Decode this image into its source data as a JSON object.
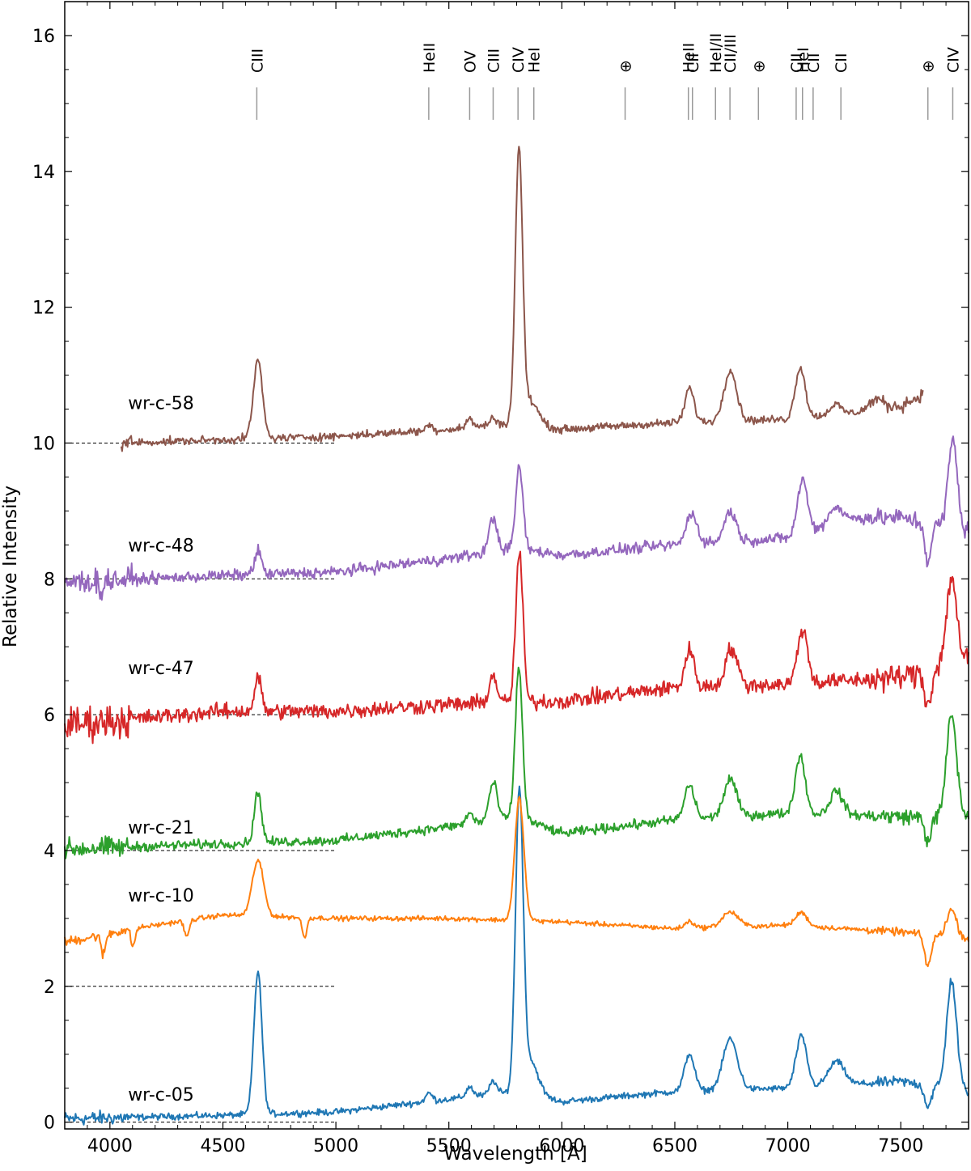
{
  "chart_data": {
    "type": "line",
    "xlabel": "Wavelength [Å]",
    "ylabel": "Relative Intensity",
    "xlim": [
      3800,
      7800
    ],
    "ylim": [
      -0.1,
      16.5
    ],
    "xticks": [
      4000,
      4500,
      5000,
      5500,
      6000,
      6500,
      7000,
      7500
    ],
    "yticks": [
      0,
      2,
      4,
      6,
      8,
      10,
      12,
      14,
      16
    ],
    "grid": false,
    "legend": "none (series labels drawn at left of each spectrum)",
    "line_ids": [
      {
        "label": "CIII",
        "x": 4650
      },
      {
        "label": "HeII",
        "x": 5411
      },
      {
        "label": "OV",
        "x": 5592
      },
      {
        "label": "CIII",
        "x": 5696
      },
      {
        "label": "CIV",
        "x": 5806
      },
      {
        "label": "HeI",
        "x": 5876
      },
      {
        "label": "⊕",
        "x": 6280
      },
      {
        "label": "HeII",
        "x": 6560
      },
      {
        "label": "CII",
        "x": 6578
      },
      {
        "label": "HeI/II",
        "x": 6680
      },
      {
        "label": "CII/III",
        "x": 6744
      },
      {
        "label": "⊕",
        "x": 6870
      },
      {
        "label": "CII",
        "x": 7037
      },
      {
        "label": "HeI",
        "x": 7065
      },
      {
        "label": "CII",
        "x": 7112
      },
      {
        "label": "CII",
        "x": 7235
      },
      {
        "label": "⊕",
        "x": 7620
      },
      {
        "label": "CIV",
        "x": 7730
      }
    ],
    "series": [
      {
        "name": "wr-c-05",
        "color": "#1f77b4",
        "offset": 0,
        "x_range": [
          3800,
          7800
        ],
        "continuum": [
          [
            3800,
            0.05
          ],
          [
            4500,
            0.1
          ],
          [
            5000,
            0.15
          ],
          [
            5400,
            0.3
          ],
          [
            5800,
            0.45
          ],
          [
            6000,
            0.3
          ],
          [
            6500,
            0.45
          ],
          [
            7000,
            0.5
          ],
          [
            7500,
            0.6
          ],
          [
            7800,
            0.45
          ]
        ],
        "emission": [
          {
            "center": 4655,
            "height": 2.1,
            "width": 18
          },
          {
            "center": 5412,
            "height": 0.12,
            "width": 15
          },
          {
            "center": 5592,
            "height": 0.15,
            "width": 15
          },
          {
            "center": 5696,
            "height": 0.2,
            "width": 15
          },
          {
            "center": 5812,
            "height": 4.3,
            "width": 17
          },
          {
            "center": 5860,
            "height": 0.5,
            "width": 35
          },
          {
            "center": 6565,
            "height": 0.55,
            "width": 22
          },
          {
            "center": 6745,
            "height": 0.75,
            "width": 32
          },
          {
            "center": 7060,
            "height": 0.75,
            "width": 24
          },
          {
            "center": 7215,
            "height": 0.35,
            "width": 35
          },
          {
            "center": 7725,
            "height": 1.6,
            "width": 22
          }
        ],
        "absorption": [
          {
            "center": 7620,
            "depth": 0.3,
            "width": 15
          }
        ],
        "noise": 0.04
      },
      {
        "name": "wr-c-10",
        "color": "#ff7f0e",
        "offset": 0,
        "x_range": [
          3800,
          7800
        ],
        "continuum": [
          [
            3800,
            2.65
          ],
          [
            4100,
            2.85
          ],
          [
            4500,
            3.05
          ],
          [
            5000,
            3.0
          ],
          [
            5500,
            3.0
          ],
          [
            6000,
            2.95
          ],
          [
            6500,
            2.85
          ],
          [
            7000,
            2.9
          ],
          [
            7500,
            2.8
          ],
          [
            7800,
            2.7
          ]
        ],
        "emission": [
          {
            "center": 4655,
            "height": 0.82,
            "width": 25
          },
          {
            "center": 5812,
            "height": 1.8,
            "width": 20
          },
          {
            "center": 6565,
            "height": 0.1,
            "width": 20
          },
          {
            "center": 6745,
            "height": 0.22,
            "width": 35
          },
          {
            "center": 7060,
            "height": 0.2,
            "width": 25
          },
          {
            "center": 7725,
            "height": 0.4,
            "width": 22
          }
        ],
        "absorption": [
          {
            "center": 3970,
            "depth": 0.3,
            "width": 10
          },
          {
            "center": 4102,
            "depth": 0.25,
            "width": 10
          },
          {
            "center": 4340,
            "depth": 0.25,
            "width": 10
          },
          {
            "center": 4861,
            "depth": 0.3,
            "width": 10
          },
          {
            "center": 7620,
            "depth": 0.45,
            "width": 15
          }
        ],
        "noise": 0.03
      },
      {
        "name": "wr-c-21",
        "color": "#2ca02c",
        "offset": 4,
        "x_range": [
          3800,
          7800
        ],
        "continuum": [
          [
            3800,
            4.02
          ],
          [
            4500,
            4.1
          ],
          [
            5000,
            4.15
          ],
          [
            5500,
            4.35
          ],
          [
            5800,
            4.5
          ],
          [
            6000,
            4.25
          ],
          [
            6500,
            4.45
          ],
          [
            7000,
            4.55
          ],
          [
            7500,
            4.5
          ],
          [
            7800,
            4.5
          ]
        ],
        "emission": [
          {
            "center": 4655,
            "height": 0.75,
            "width": 16
          },
          {
            "center": 5592,
            "height": 0.15,
            "width": 15
          },
          {
            "center": 5696,
            "height": 0.55,
            "width": 18
          },
          {
            "center": 5810,
            "height": 2.2,
            "width": 16
          },
          {
            "center": 6565,
            "height": 0.5,
            "width": 22
          },
          {
            "center": 6745,
            "height": 0.55,
            "width": 28
          },
          {
            "center": 7055,
            "height": 0.85,
            "width": 22
          },
          {
            "center": 7215,
            "height": 0.35,
            "width": 28
          },
          {
            "center": 7725,
            "height": 1.5,
            "width": 22
          }
        ],
        "absorption": [
          {
            "center": 7620,
            "depth": 0.35,
            "width": 15
          }
        ],
        "noise": 0.06
      },
      {
        "name": "wr-c-47",
        "color": "#d62728",
        "offset": 6,
        "x_range": [
          3800,
          7800
        ],
        "continuum": [
          [
            3800,
            5.85
          ],
          [
            4500,
            6.05
          ],
          [
            5000,
            6.05
          ],
          [
            5500,
            6.15
          ],
          [
            6000,
            6.2
          ],
          [
            6500,
            6.4
          ],
          [
            7000,
            6.45
          ],
          [
            7500,
            6.55
          ],
          [
            7800,
            6.8
          ]
        ],
        "emission": [
          {
            "center": 4655,
            "height": 0.5,
            "width": 15
          },
          {
            "center": 5696,
            "height": 0.4,
            "width": 18
          },
          {
            "center": 5812,
            "height": 2.2,
            "width": 16
          },
          {
            "center": 6565,
            "height": 0.55,
            "width": 20
          },
          {
            "center": 6750,
            "height": 0.55,
            "width": 26
          },
          {
            "center": 7065,
            "height": 0.8,
            "width": 22
          },
          {
            "center": 7725,
            "height": 1.3,
            "width": 22
          }
        ],
        "absorption": [
          {
            "center": 7620,
            "depth": 0.5,
            "width": 15
          }
        ],
        "noise": 0.1
      },
      {
        "name": "wr-c-48",
        "color": "#9467bd",
        "offset": 8,
        "x_range": [
          3800,
          7800
        ],
        "continuum": [
          [
            3800,
            7.95
          ],
          [
            4500,
            8.05
          ],
          [
            5000,
            8.1
          ],
          [
            5500,
            8.3
          ],
          [
            5800,
            8.45
          ],
          [
            6000,
            8.35
          ],
          [
            6500,
            8.5
          ],
          [
            7000,
            8.6
          ],
          [
            7300,
            8.9
          ],
          [
            7500,
            8.9
          ],
          [
            7800,
            8.7
          ]
        ],
        "emission": [
          {
            "center": 4655,
            "height": 0.35,
            "width": 15
          },
          {
            "center": 5696,
            "height": 0.5,
            "width": 18
          },
          {
            "center": 5812,
            "height": 1.2,
            "width": 16
          },
          {
            "center": 6575,
            "height": 0.45,
            "width": 24
          },
          {
            "center": 6745,
            "height": 0.45,
            "width": 26
          },
          {
            "center": 7065,
            "height": 0.8,
            "width": 22
          },
          {
            "center": 7210,
            "height": 0.25,
            "width": 30
          },
          {
            "center": 7730,
            "height": 1.3,
            "width": 20
          }
        ],
        "absorption": [
          {
            "center": 3960,
            "depth": 0.15,
            "width": 10
          },
          {
            "center": 7620,
            "depth": 0.55,
            "width": 14
          }
        ],
        "noise": 0.07
      },
      {
        "name": "wr-c-58",
        "color": "#8c564b",
        "offset": 10,
        "x_range": [
          4050,
          7600
        ],
        "continuum": [
          [
            4050,
            10.0
          ],
          [
            4500,
            10.05
          ],
          [
            5000,
            10.1
          ],
          [
            5500,
            10.2
          ],
          [
            5800,
            10.3
          ],
          [
            6000,
            10.2
          ],
          [
            6500,
            10.3
          ],
          [
            7000,
            10.35
          ],
          [
            7300,
            10.45
          ],
          [
            7500,
            10.55
          ],
          [
            7590,
            10.7
          ]
        ],
        "emission": [
          {
            "center": 4655,
            "height": 1.15,
            "width": 20
          },
          {
            "center": 5412,
            "height": 0.08,
            "width": 15
          },
          {
            "center": 5592,
            "height": 0.12,
            "width": 15
          },
          {
            "center": 5696,
            "height": 0.1,
            "width": 15
          },
          {
            "center": 5810,
            "height": 3.95,
            "width": 16
          },
          {
            "center": 5860,
            "height": 0.35,
            "width": 35
          },
          {
            "center": 6565,
            "height": 0.5,
            "width": 20
          },
          {
            "center": 6745,
            "height": 0.75,
            "width": 28
          },
          {
            "center": 7055,
            "height": 0.75,
            "width": 22
          },
          {
            "center": 7210,
            "height": 0.15,
            "width": 25
          },
          {
            "center": 7390,
            "height": 0.15,
            "width": 30
          }
        ],
        "absorption": [],
        "noise": 0.05
      }
    ],
    "baselines": [
      {
        "y": 0,
        "x": [
          3800,
          5000
        ]
      },
      {
        "y": 2,
        "x": [
          3800,
          5000
        ]
      },
      {
        "y": 4,
        "x": [
          3800,
          5000
        ]
      },
      {
        "y": 6,
        "x": [
          3800,
          5000
        ]
      },
      {
        "y": 8,
        "x": [
          3800,
          5000
        ]
      },
      {
        "y": 10,
        "x": [
          3800,
          5000
        ]
      }
    ],
    "series_labels": [
      {
        "text": "wr-c-58",
        "x": 4080,
        "y": 10.5
      },
      {
        "text": "wr-c-48",
        "x": 4080,
        "y": 8.4
      },
      {
        "text": "wr-c-47",
        "x": 4080,
        "y": 6.6
      },
      {
        "text": "wr-c-21",
        "x": 4080,
        "y": 4.25
      },
      {
        "text": "wr-c-10",
        "x": 4080,
        "y": 3.25
      },
      {
        "text": "wr-c-05",
        "x": 4080,
        "y": 0.32
      }
    ]
  }
}
